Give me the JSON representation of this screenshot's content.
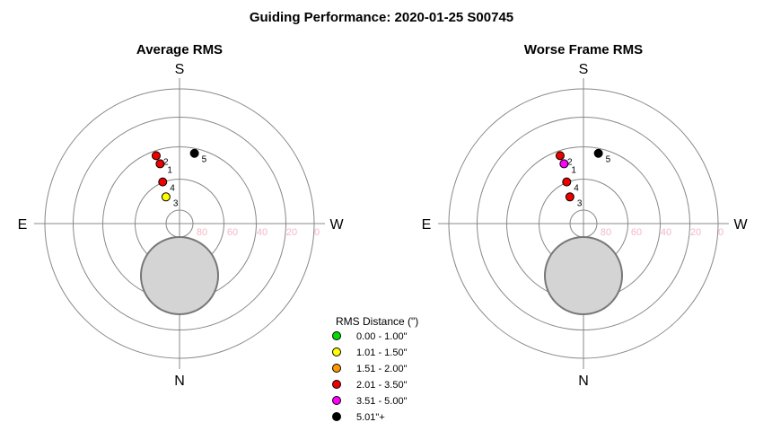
{
  "title": "Guiding Performance: 2020-01-25 S00745",
  "legend": {
    "title": "RMS Distance (\")",
    "entries": [
      {
        "label": "0.00 - 1.00\"",
        "color": "#00dd00"
      },
      {
        "label": "1.01 - 1.50\"",
        "color": "#ffff00"
      },
      {
        "label": "1.51 - 2.00\"",
        "color": "#ff9900"
      },
      {
        "label": "2.01 - 3.50\"",
        "color": "#ee0000"
      },
      {
        "label": "3.51 - 5.00\"",
        "color": "#ff00ff"
      },
      {
        "label": "5.01\"+",
        "color": "#000000"
      }
    ]
  },
  "chart_data": [
    {
      "type": "scatter",
      "title": "Average RMS",
      "directions": {
        "top": "S",
        "bottom": "N",
        "left": "E",
        "right": "W"
      },
      "altitude_ticks": [
        "80",
        "60",
        "40",
        "20",
        "0"
      ],
      "rings": [
        85,
        70,
        50,
        30,
        0
      ],
      "grid": true,
      "points": [
        {
          "label": "1",
          "az": 162,
          "alt": 48,
          "color": "#ee0000"
        },
        {
          "label": "2",
          "az": 161,
          "alt": 42,
          "color": "#ee0000"
        },
        {
          "label": "3",
          "az": 153,
          "alt": 70,
          "color": "#ffff00"
        },
        {
          "label": "4",
          "az": 158,
          "alt": 60,
          "color": "#ee0000"
        },
        {
          "label": "5",
          "az": 192,
          "alt": 42,
          "color": "#000000"
        }
      ]
    },
    {
      "type": "scatter",
      "title": "Worse Frame RMS",
      "directions": {
        "top": "S",
        "bottom": "N",
        "left": "E",
        "right": "W"
      },
      "altitude_ticks": [
        "80",
        "60",
        "40",
        "20",
        "0"
      ],
      "rings": [
        85,
        70,
        50,
        30,
        0
      ],
      "grid": true,
      "points": [
        {
          "label": "1",
          "az": 162,
          "alt": 48,
          "color": "#ff00ff"
        },
        {
          "label": "2",
          "az": 161,
          "alt": 42,
          "color": "#ee0000"
        },
        {
          "label": "3",
          "az": 153,
          "alt": 70,
          "color": "#ee0000"
        },
        {
          "label": "4",
          "az": 158,
          "alt": 60,
          "color": "#ee0000"
        },
        {
          "label": "5",
          "az": 192,
          "alt": 42,
          "color": "#000000"
        }
      ]
    }
  ]
}
